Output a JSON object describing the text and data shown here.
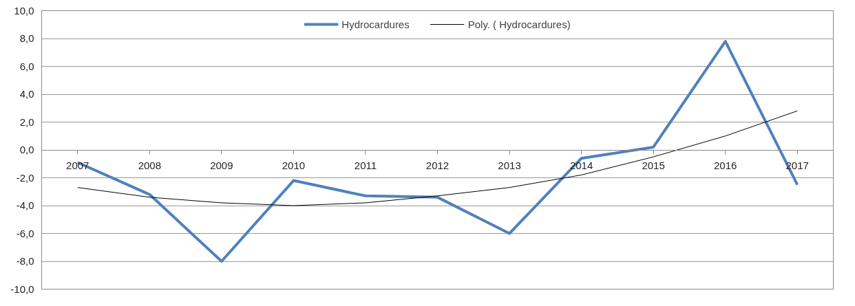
{
  "chart_data": {
    "type": "line",
    "categories": [
      "2007",
      "2008",
      "2009",
      "2010",
      "2011",
      "2012",
      "2013",
      "2014",
      "2015",
      "2016",
      "2017"
    ],
    "series": [
      {
        "name": "Hydrocardures",
        "color": "#4f81bd",
        "values": [
          -0.9,
          -3.2,
          -8.0,
          -2.2,
          -3.3,
          -3.4,
          -6.0,
          -0.6,
          0.2,
          7.8,
          -2.5
        ]
      },
      {
        "name": "Poly. ( Hydrocardures)",
        "color": "#000000",
        "values": [
          -2.7,
          -3.4,
          -3.8,
          -4.0,
          -3.8,
          -3.3,
          -2.7,
          -1.8,
          -0.5,
          1.0,
          2.8
        ]
      }
    ],
    "ylim": [
      -10,
      10
    ],
    "yticks": [
      {
        "value": -10,
        "label": "-10,0"
      },
      {
        "value": -8,
        "label": "-8,0"
      },
      {
        "value": -6,
        "label": "-6,0"
      },
      {
        "value": -4,
        "label": "-4,0"
      },
      {
        "value": -2,
        "label": "-2,0"
      },
      {
        "value": 0,
        "label": "0,0"
      },
      {
        "value": 2,
        "label": "2,0"
      },
      {
        "value": 4,
        "label": "4,0"
      },
      {
        "value": 6,
        "label": "6,0"
      },
      {
        "value": 8,
        "label": "8,0"
      },
      {
        "value": 10,
        "label": "10,0"
      }
    ],
    "grid": "y",
    "legend": "top",
    "marker": "none",
    "line_style": "solid"
  }
}
